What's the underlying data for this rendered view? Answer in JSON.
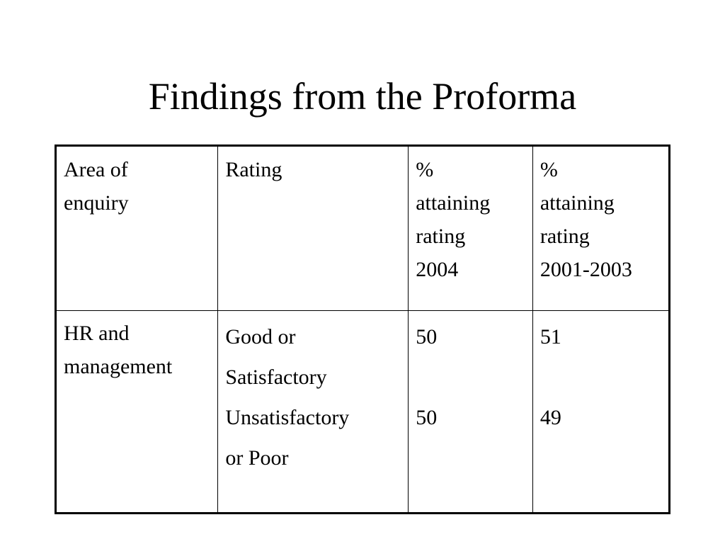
{
  "slide": {
    "title": "Findings from the Proforma"
  },
  "table": {
    "headers": {
      "area": [
        "Area of",
        "enquiry"
      ],
      "rating": "Rating",
      "pct_2004": [
        "%",
        "attaining",
        "rating",
        "2004"
      ],
      "pct_2001_2003": [
        "%",
        "attaining",
        "rating",
        "2001-2003"
      ]
    },
    "rows": [
      {
        "area": [
          "HR and",
          "management"
        ],
        "ratings": [
          "Good or",
          "Satisfactory",
          "Unsatisfactory",
          "or Poor"
        ],
        "pct_2004": [
          "50",
          "50"
        ],
        "pct_2001_2003": [
          "51",
          "49"
        ]
      }
    ]
  }
}
